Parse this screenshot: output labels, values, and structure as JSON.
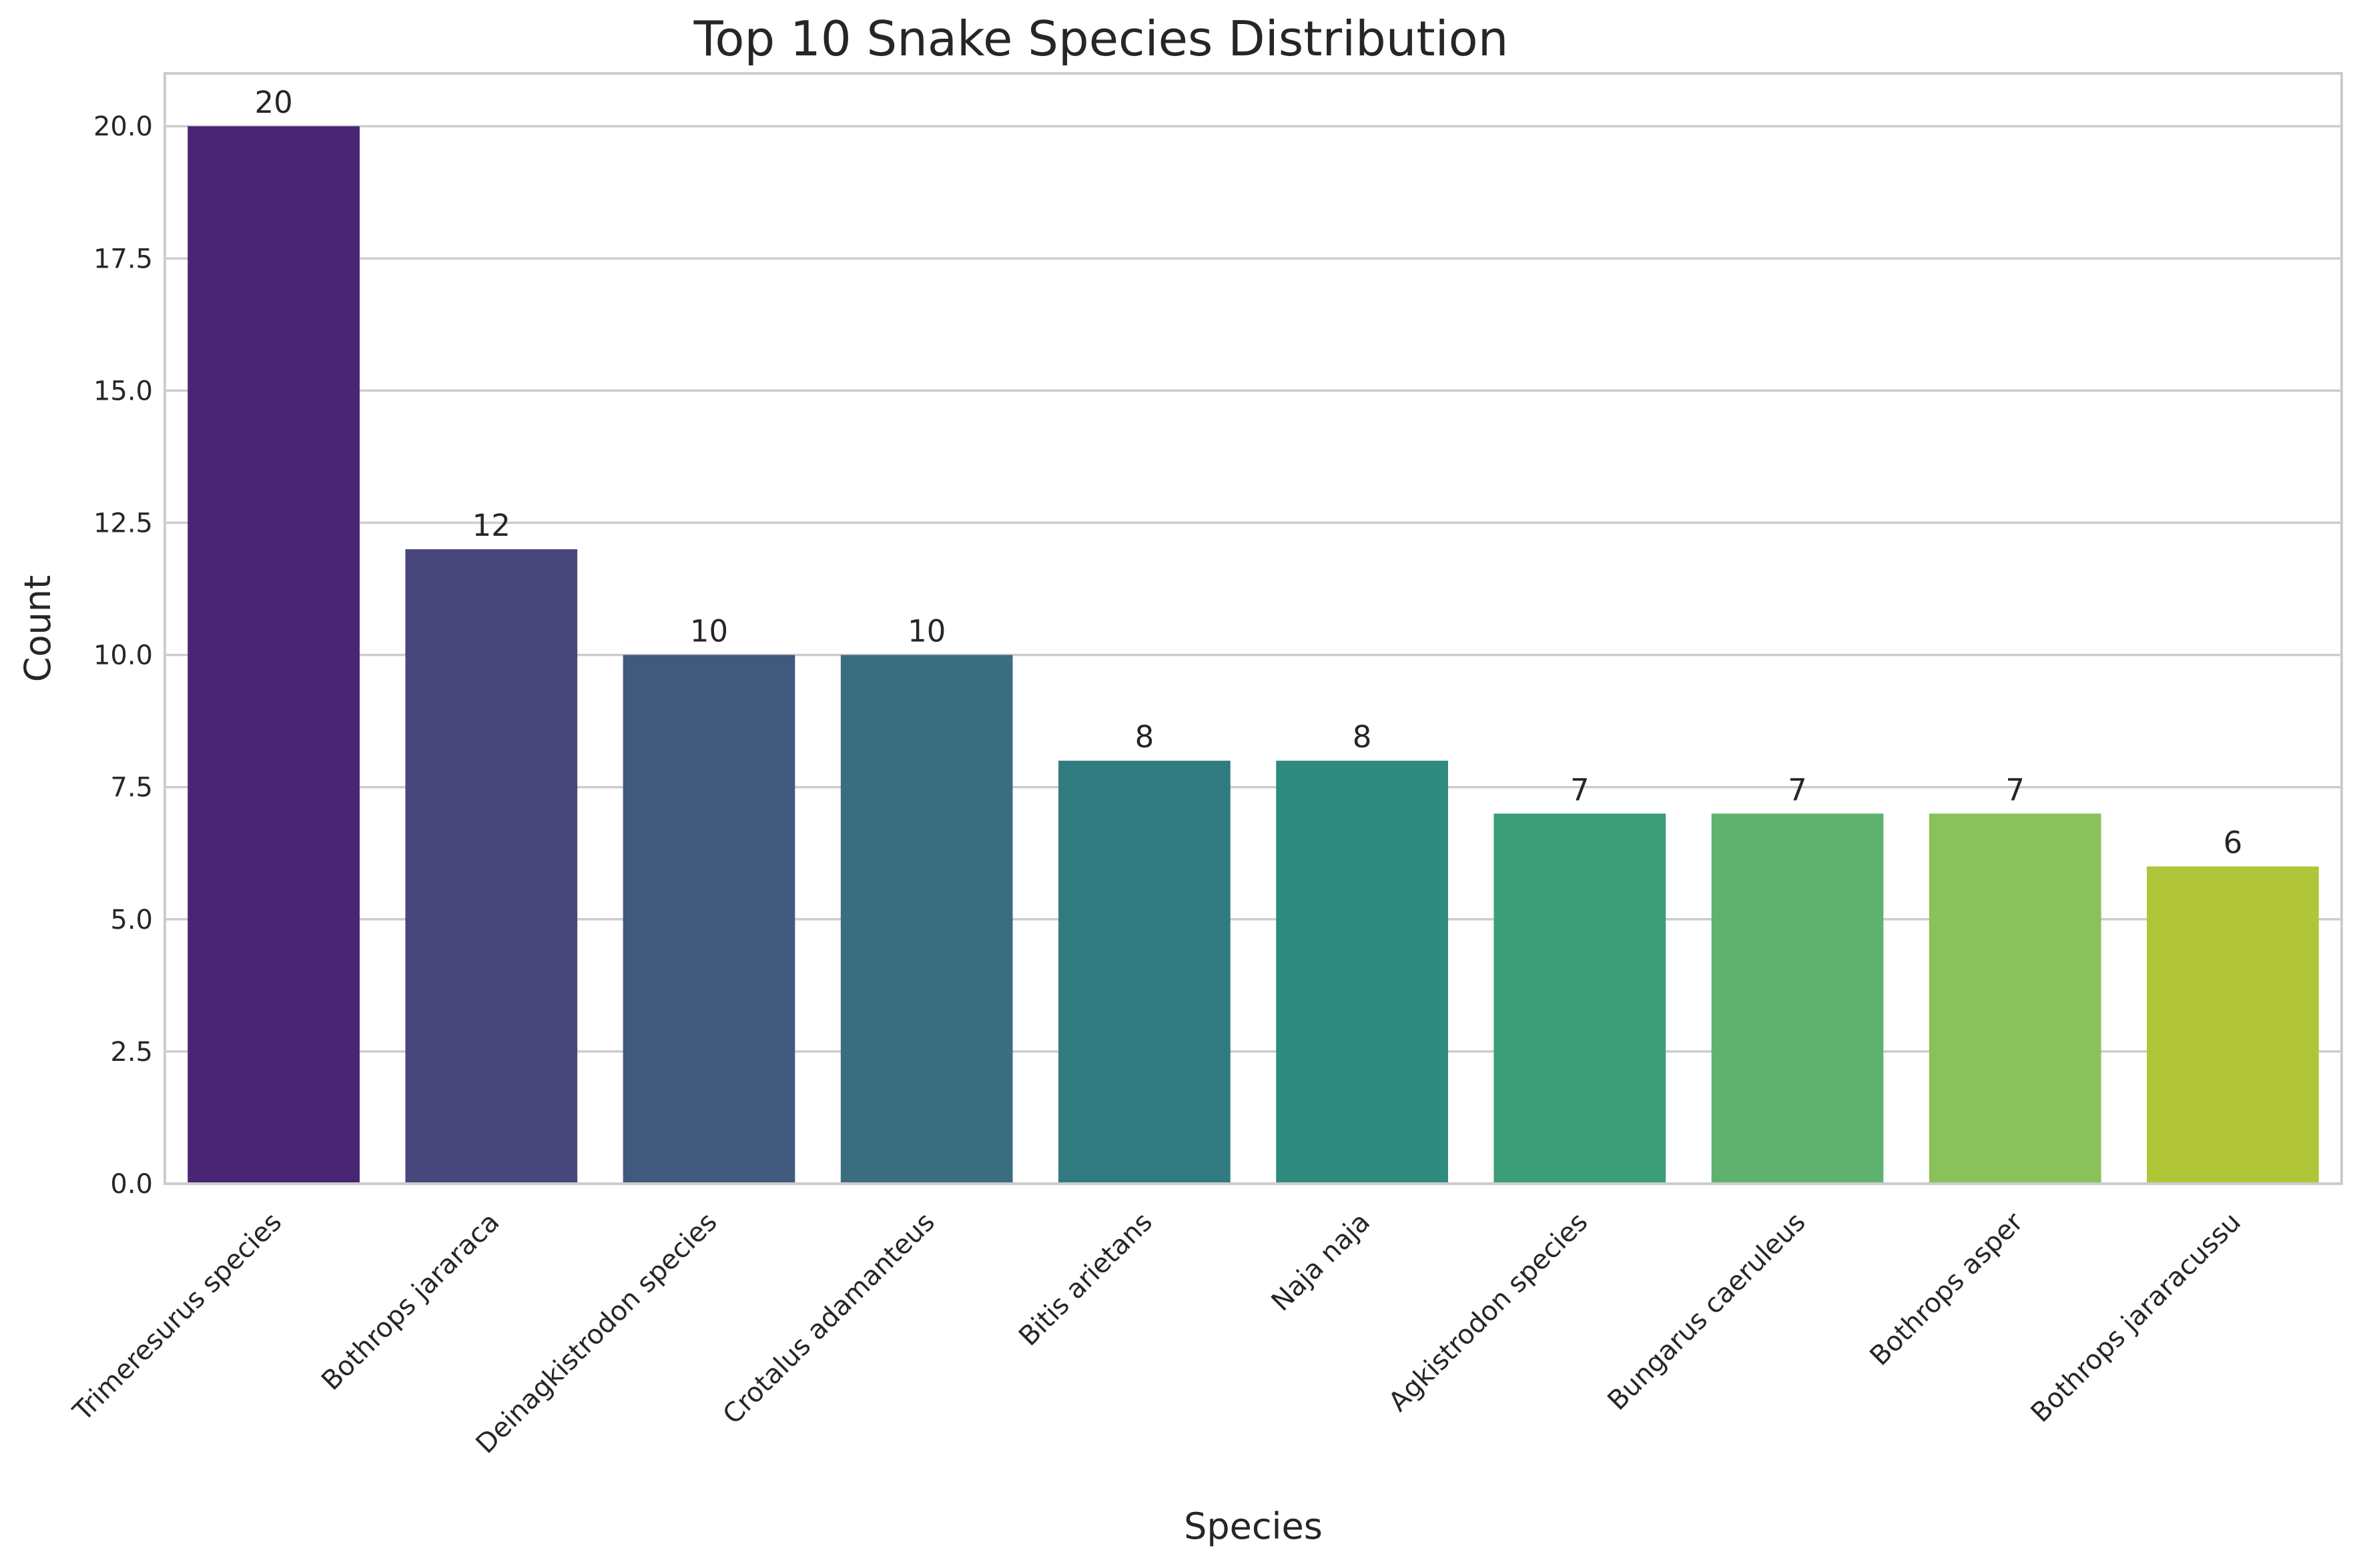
{
  "chart_data": {
    "type": "bar",
    "title": "Top 10 Snake Species Distribution",
    "xlabel": "Species",
    "ylabel": "Count",
    "categories": [
      "Trimeresurus species",
      "Bothrops jararaca",
      "Deinagkistrodon species",
      "Crotalus adamanteus",
      "Bitis arietans",
      "Naja naja",
      "Agkistrodon species",
      "Bungarus caeruleus",
      "Bothrops asper",
      "Bothrops jararacussu"
    ],
    "values": [
      20,
      12,
      10,
      10,
      8,
      8,
      7,
      7,
      7,
      6
    ],
    "value_labels": [
      "20",
      "12",
      "10",
      "10",
      "8",
      "8",
      "7",
      "7",
      "7",
      "6"
    ],
    "ylim": [
      0,
      21
    ],
    "yticks": [
      0,
      2.5,
      5,
      7.5,
      10,
      12.5,
      15,
      17.5,
      20
    ],
    "ytick_labels": [
      "0.0",
      "2.5",
      "5.0",
      "7.5",
      "10.0",
      "12.5",
      "15.0",
      "17.5",
      "20.0"
    ],
    "grid": "horizontal",
    "bar_colors": [
      "#482575",
      "#48477b",
      "#42597e",
      "#3b6d80",
      "#317b80",
      "#2f8b7d",
      "#3c9e78",
      "#5fb26d",
      "#8ac15a",
      "#b0c638"
    ]
  }
}
